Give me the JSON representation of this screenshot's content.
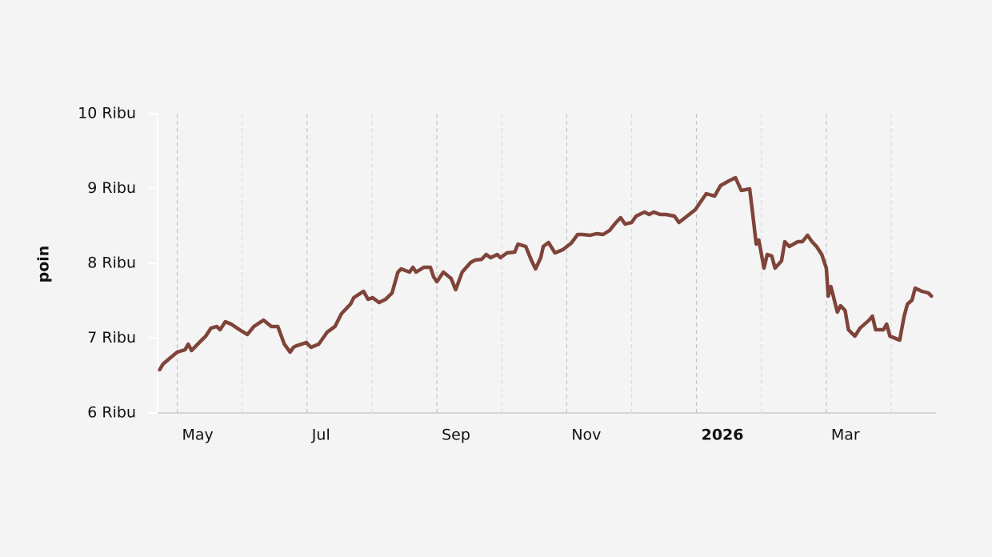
{
  "chart_data": {
    "type": "line",
    "ylabel": "poin",
    "x": [
      4.73,
      4.78,
      4.88,
      5.0,
      5.12,
      5.17,
      5.22,
      5.34,
      5.44,
      5.52,
      5.61,
      5.66,
      5.74,
      5.83,
      5.96,
      6.08,
      6.18,
      6.33,
      6.45,
      6.55,
      6.65,
      6.74,
      6.79,
      6.84,
      6.99,
      7.06,
      7.18,
      7.31,
      7.43,
      7.53,
      7.67,
      7.72,
      7.87,
      7.94,
      8.01,
      8.11,
      8.21,
      8.31,
      8.4,
      8.45,
      8.58,
      8.63,
      8.68,
      8.8,
      8.9,
      8.95,
      9.0,
      9.1,
      9.22,
      9.29,
      9.39,
      9.52,
      9.59,
      9.69,
      9.76,
      9.83,
      9.93,
      9.98,
      10.08,
      10.2,
      10.25,
      10.37,
      10.45,
      10.52,
      10.6,
      10.64,
      10.72,
      10.82,
      10.94,
      11.07,
      11.17,
      11.24,
      11.36,
      11.46,
      11.56,
      11.66,
      11.76,
      11.83,
      11.9,
      12.0,
      12.07,
      12.2,
      12.27,
      12.34,
      12.44,
      12.53,
      12.66,
      12.73,
      12.98,
      13.15,
      13.28,
      13.37,
      13.5,
      13.6,
      13.69,
      13.82,
      13.87,
      13.92,
      13.96,
      14.04,
      14.09,
      14.16,
      14.21,
      14.31,
      14.36,
      14.43,
      14.56,
      14.63,
      14.71,
      14.78,
      14.85,
      14.93,
      15.0,
      15.03,
      15.07,
      15.17,
      15.22,
      15.29,
      15.34,
      15.44,
      15.52,
      15.66,
      15.71,
      15.76,
      15.88,
      15.93,
      15.98,
      16.13,
      16.2,
      16.25,
      16.32,
      16.37,
      16.47,
      16.57,
      16.62
    ],
    "series": [
      {
        "color": "#7f4439",
        "values": [
          6578,
          6652,
          6727,
          6813,
          6845,
          6920,
          6834,
          6941,
          7027,
          7134,
          7155,
          7112,
          7219,
          7187,
          7112,
          7048,
          7155,
          7241,
          7155,
          7155,
          6920,
          6813,
          6877,
          6898,
          6941,
          6877,
          6920,
          7080,
          7155,
          7326,
          7455,
          7540,
          7626,
          7519,
          7540,
          7476,
          7519,
          7604,
          7882,
          7925,
          7882,
          7946,
          7882,
          7946,
          7946,
          7818,
          7754,
          7882,
          7797,
          7647,
          7882,
          8011,
          8043,
          8054,
          8118,
          8075,
          8118,
          8075,
          8139,
          8150,
          8257,
          8225,
          8054,
          7925,
          8075,
          8225,
          8278,
          8139,
          8182,
          8268,
          8385,
          8385,
          8374,
          8396,
          8385,
          8439,
          8545,
          8610,
          8524,
          8545,
          8631,
          8684,
          8652,
          8684,
          8652,
          8652,
          8631,
          8545,
          8716,
          8930,
          8898,
          9037,
          9102,
          9144,
          8973,
          8995,
          8631,
          8257,
          8310,
          7936,
          8118,
          8097,
          7936,
          8032,
          8289,
          8225,
          8289,
          8289,
          8374,
          8289,
          8225,
          8118,
          7936,
          7561,
          7690,
          7348,
          7433,
          7369,
          7112,
          7027,
          7134,
          7241,
          7294,
          7112,
          7112,
          7187,
          7027,
          6973,
          7294,
          7455,
          7508,
          7668,
          7626,
          7604,
          7561
        ]
      }
    ],
    "xlim": [
      4.71,
      16.69
    ],
    "xticks": [
      {
        "value": 5,
        "label": "May"
      },
      {
        "value": 7,
        "label": "Jul"
      },
      {
        "value": 9,
        "label": "Sep"
      },
      {
        "value": 11,
        "label": "Nov"
      },
      {
        "value": 13,
        "label": "2026",
        "bold": true
      },
      {
        "value": 15,
        "label": "Mar"
      }
    ],
    "xgrid_minor": [
      6,
      8,
      10,
      12,
      14,
      16
    ],
    "ylim": [
      6000,
      10000
    ],
    "yticks": [
      {
        "value": 6000,
        "label": "6 Ribu"
      },
      {
        "value": 7000,
        "label": "7 Ribu"
      },
      {
        "value": 8000,
        "label": "8 Ribu"
      },
      {
        "value": 9000,
        "label": "9 Ribu"
      },
      {
        "value": 10000,
        "label": "10 Ribu"
      }
    ],
    "grid": true
  }
}
